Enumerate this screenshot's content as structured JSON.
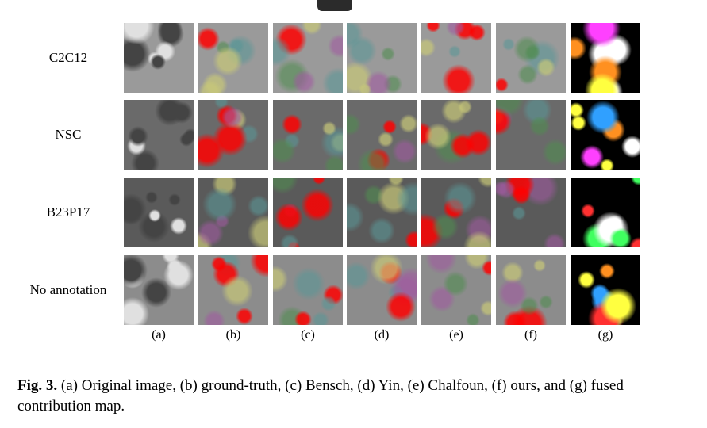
{
  "figure": {
    "rows": [
      "C2C12",
      "NSC",
      "B23P17",
      "No annotation"
    ],
    "columns": [
      "(a)",
      "(b)",
      "(c)",
      "(d)",
      "(e)",
      "(f)",
      "(g)"
    ]
  },
  "caption": {
    "label": "Fig. 3.",
    "text": "(a) Original image, (b) ground-truth, (c) Bensch, (d) Yin, (e) Chalfoun, (f) ours, and (g) fused contribution map."
  }
}
